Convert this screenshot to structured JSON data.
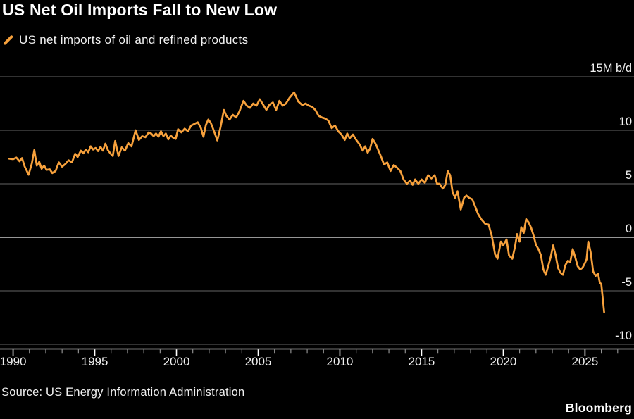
{
  "header": {
    "title": "US Net Oil Imports Fall to New Low"
  },
  "legend": {
    "label": "US net imports of oil and refined products"
  },
  "footer": {
    "source": "Source: US Energy Information Administration",
    "brand": "Bloomberg"
  },
  "colors": {
    "background": "#000000",
    "line": "#F7A13C",
    "grid": "#4F4F4F",
    "zero_line": "#ABABAB",
    "axis_line": "#DEDEDE",
    "minor_tick": "#9A9A9A",
    "major_tick": "#FFFFFF",
    "label_text": "#F2F2F2"
  },
  "chart_data": {
    "type": "line",
    "title": "US Net Oil Imports Fall to New Low",
    "series_name": "US net imports of oil and refined products",
    "unit": "M b/d",
    "xlabel": "",
    "ylabel": "15M b/d",
    "grid": true,
    "legend_position": "top-left",
    "xlim": [
      1989.2,
      2028.0
    ],
    "ylim": [
      -10,
      15
    ],
    "y_ticks": [
      {
        "value": 15,
        "label": "15M b/d"
      },
      {
        "value": 10,
        "label": "10"
      },
      {
        "value": 5,
        "label": "5"
      },
      {
        "value": 0,
        "label": "0"
      },
      {
        "value": -5,
        "label": "-5"
      },
      {
        "value": -10,
        "label": "-10"
      }
    ],
    "x_major_ticks": [
      1990,
      1995,
      2000,
      2005,
      2010,
      2015,
      2020,
      2025
    ],
    "x_minor_tick_start": 1990,
    "x_minor_tick_end": 2027,
    "points": [
      [
        1989.75,
        7.35
      ],
      [
        1990.0,
        7.3
      ],
      [
        1990.2,
        7.45
      ],
      [
        1990.4,
        7.1
      ],
      [
        1990.55,
        7.4
      ],
      [
        1990.7,
        6.65
      ],
      [
        1990.95,
        5.85
      ],
      [
        1991.15,
        6.9
      ],
      [
        1991.3,
        8.15
      ],
      [
        1991.45,
        6.7
      ],
      [
        1991.6,
        7.05
      ],
      [
        1991.75,
        6.4
      ],
      [
        1991.9,
        6.7
      ],
      [
        1992.05,
        6.3
      ],
      [
        1992.25,
        6.35
      ],
      [
        1992.4,
        6.0
      ],
      [
        1992.6,
        6.2
      ],
      [
        1992.8,
        7.0
      ],
      [
        1993.0,
        6.6
      ],
      [
        1993.2,
        6.85
      ],
      [
        1993.4,
        7.2
      ],
      [
        1993.6,
        7.0
      ],
      [
        1993.8,
        7.8
      ],
      [
        1993.95,
        7.5
      ],
      [
        1994.15,
        8.1
      ],
      [
        1994.3,
        7.85
      ],
      [
        1994.45,
        8.2
      ],
      [
        1994.6,
        7.95
      ],
      [
        1994.75,
        8.5
      ],
      [
        1994.9,
        8.2
      ],
      [
        1995.05,
        8.35
      ],
      [
        1995.2,
        8.05
      ],
      [
        1995.35,
        8.45
      ],
      [
        1995.5,
        8.1
      ],
      [
        1995.65,
        8.75
      ],
      [
        1995.8,
        8.15
      ],
      [
        1995.95,
        7.85
      ],
      [
        1996.1,
        7.6
      ],
      [
        1996.25,
        9.0
      ],
      [
        1996.45,
        7.6
      ],
      [
        1996.65,
        8.4
      ],
      [
        1996.85,
        8.1
      ],
      [
        1997.05,
        8.8
      ],
      [
        1997.25,
        8.5
      ],
      [
        1997.5,
        10.0
      ],
      [
        1997.7,
        9.1
      ],
      [
        1997.9,
        9.45
      ],
      [
        1998.1,
        9.35
      ],
      [
        1998.3,
        9.8
      ],
      [
        1998.45,
        9.7
      ],
      [
        1998.6,
        9.45
      ],
      [
        1998.75,
        9.7
      ],
      [
        1998.9,
        9.4
      ],
      [
        1999.05,
        9.9
      ],
      [
        1999.2,
        9.45
      ],
      [
        1999.35,
        9.7
      ],
      [
        1999.5,
        9.15
      ],
      [
        1999.65,
        9.5
      ],
      [
        1999.8,
        9.3
      ],
      [
        1999.95,
        9.2
      ],
      [
        2000.1,
        10.1
      ],
      [
        2000.3,
        9.8
      ],
      [
        2000.5,
        10.15
      ],
      [
        2000.7,
        9.9
      ],
      [
        2000.9,
        10.45
      ],
      [
        2001.1,
        10.6
      ],
      [
        2001.3,
        10.75
      ],
      [
        2001.5,
        10.2
      ],
      [
        2001.65,
        9.4
      ],
      [
        2001.8,
        10.5
      ],
      [
        2001.95,
        11.0
      ],
      [
        2002.1,
        10.7
      ],
      [
        2002.3,
        9.9
      ],
      [
        2002.5,
        9.05
      ],
      [
        2002.7,
        10.3
      ],
      [
        2002.9,
        11.9
      ],
      [
        2003.05,
        11.35
      ],
      [
        2003.25,
        11.0
      ],
      [
        2003.45,
        11.45
      ],
      [
        2003.65,
        11.2
      ],
      [
        2003.85,
        11.75
      ],
      [
        2004.1,
        12.75
      ],
      [
        2004.3,
        12.3
      ],
      [
        2004.5,
        12.1
      ],
      [
        2004.7,
        12.5
      ],
      [
        2004.9,
        12.3
      ],
      [
        2005.1,
        12.9
      ],
      [
        2005.3,
        12.4
      ],
      [
        2005.5,
        11.9
      ],
      [
        2005.7,
        12.4
      ],
      [
        2005.9,
        12.6
      ],
      [
        2006.1,
        11.9
      ],
      [
        2006.3,
        12.75
      ],
      [
        2006.5,
        12.3
      ],
      [
        2006.7,
        12.5
      ],
      [
        2006.9,
        13.0
      ],
      [
        2007.2,
        13.55
      ],
      [
        2007.45,
        12.7
      ],
      [
        2007.7,
        12.35
      ],
      [
        2007.9,
        12.5
      ],
      [
        2008.1,
        12.3
      ],
      [
        2008.3,
        12.2
      ],
      [
        2008.5,
        11.9
      ],
      [
        2008.7,
        11.35
      ],
      [
        2008.9,
        11.2
      ],
      [
        2009.1,
        11.1
      ],
      [
        2009.3,
        10.9
      ],
      [
        2009.5,
        10.2
      ],
      [
        2009.7,
        10.45
      ],
      [
        2009.9,
        9.9
      ],
      [
        2010.1,
        9.6
      ],
      [
        2010.3,
        9.1
      ],
      [
        2010.45,
        9.7
      ],
      [
        2010.6,
        9.25
      ],
      [
        2010.8,
        9.6
      ],
      [
        2011.0,
        9.1
      ],
      [
        2011.2,
        8.7
      ],
      [
        2011.4,
        8.1
      ],
      [
        2011.55,
        8.5
      ],
      [
        2011.7,
        7.9
      ],
      [
        2011.85,
        8.3
      ],
      [
        2012.0,
        9.2
      ],
      [
        2012.2,
        8.7
      ],
      [
        2012.5,
        7.6
      ],
      [
        2012.7,
        6.8
      ],
      [
        2012.9,
        7.0
      ],
      [
        2013.1,
        6.2
      ],
      [
        2013.3,
        6.75
      ],
      [
        2013.5,
        6.5
      ],
      [
        2013.7,
        6.2
      ],
      [
        2013.9,
        5.4
      ],
      [
        2014.1,
        5.0
      ],
      [
        2014.3,
        5.3
      ],
      [
        2014.45,
        4.9
      ],
      [
        2014.6,
        5.4
      ],
      [
        2014.8,
        5.0
      ],
      [
        2015.0,
        5.4
      ],
      [
        2015.2,
        5.1
      ],
      [
        2015.4,
        5.8
      ],
      [
        2015.6,
        5.5
      ],
      [
        2015.8,
        5.8
      ],
      [
        2015.95,
        5.0
      ],
      [
        2016.1,
        5.0
      ],
      [
        2016.3,
        4.55
      ],
      [
        2016.45,
        4.9
      ],
      [
        2016.6,
        6.2
      ],
      [
        2016.75,
        5.8
      ],
      [
        2016.9,
        4.2
      ],
      [
        2017.05,
        3.7
      ],
      [
        2017.2,
        4.3
      ],
      [
        2017.4,
        2.6
      ],
      [
        2017.6,
        3.7
      ],
      [
        2017.75,
        3.9
      ],
      [
        2017.9,
        3.7
      ],
      [
        2018.1,
        3.55
      ],
      [
        2018.3,
        2.8
      ],
      [
        2018.45,
        2.2
      ],
      [
        2018.65,
        1.7
      ],
      [
        2018.9,
        1.25
      ],
      [
        2019.1,
        1.2
      ],
      [
        2019.3,
        0.1
      ],
      [
        2019.5,
        -1.6
      ],
      [
        2019.65,
        -2.0
      ],
      [
        2019.85,
        -0.4
      ],
      [
        2020.0,
        -0.75
      ],
      [
        2020.2,
        -0.2
      ],
      [
        2020.35,
        -1.7
      ],
      [
        2020.55,
        -2.0
      ],
      [
        2020.7,
        -1.0
      ],
      [
        2020.85,
        0.3
      ],
      [
        2021.0,
        -0.4
      ],
      [
        2021.1,
        0.95
      ],
      [
        2021.25,
        0.4
      ],
      [
        2021.4,
        1.7
      ],
      [
        2021.55,
        1.4
      ],
      [
        2021.7,
        0.9
      ],
      [
        2021.85,
        0.2
      ],
      [
        2022.0,
        -0.7
      ],
      [
        2022.15,
        -1.1
      ],
      [
        2022.3,
        -1.65
      ],
      [
        2022.45,
        -3.0
      ],
      [
        2022.6,
        -3.5
      ],
      [
        2022.75,
        -2.7
      ],
      [
        2022.9,
        -1.85
      ],
      [
        2023.05,
        -0.75
      ],
      [
        2023.2,
        -1.65
      ],
      [
        2023.35,
        -2.85
      ],
      [
        2023.5,
        -3.3
      ],
      [
        2023.65,
        -3.5
      ],
      [
        2023.8,
        -2.6
      ],
      [
        2023.95,
        -2.2
      ],
      [
        2024.1,
        -2.3
      ],
      [
        2024.25,
        -1.1
      ],
      [
        2024.4,
        -1.85
      ],
      [
        2024.55,
        -2.7
      ],
      [
        2024.7,
        -3.0
      ],
      [
        2024.85,
        -2.85
      ],
      [
        2025.0,
        -2.4
      ],
      [
        2025.1,
        -2.05
      ],
      [
        2025.2,
        -0.4
      ],
      [
        2025.35,
        -1.4
      ],
      [
        2025.5,
        -3.2
      ],
      [
        2025.65,
        -3.6
      ],
      [
        2025.8,
        -3.4
      ],
      [
        2025.9,
        -4.2
      ],
      [
        2026.0,
        -4.4
      ],
      [
        2026.17,
        -7.0
      ]
    ]
  }
}
